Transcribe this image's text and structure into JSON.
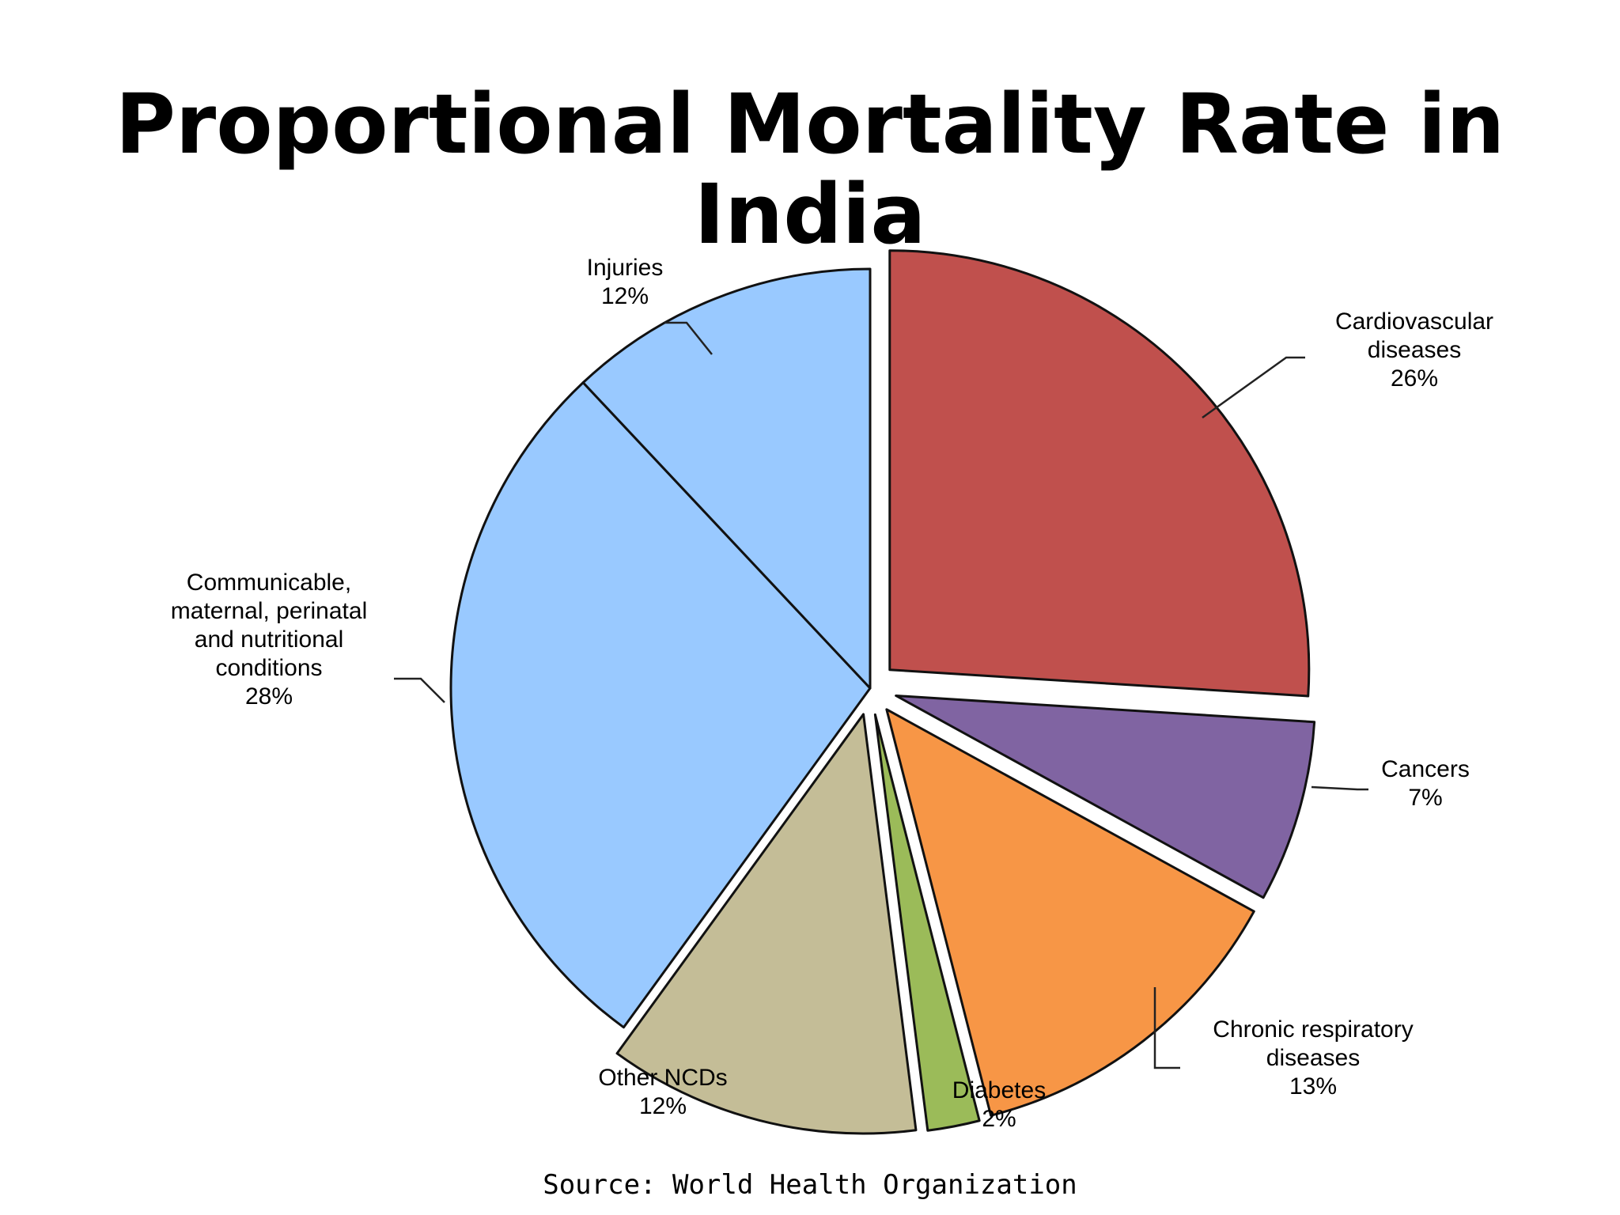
{
  "chart_data": {
    "type": "pie",
    "title": "Proportional Mortality Rate in India",
    "source": "Source: World Health Organization",
    "unit": "%",
    "slices": [
      {
        "label_lines": [
          "Cardiovascular",
          "diseases"
        ],
        "value": 26,
        "value_label": "26%",
        "color": "#c0504d",
        "exploded": true
      },
      {
        "label_lines": [
          "Cancers"
        ],
        "value": 7,
        "value_label": "7%",
        "color": "#8064a2",
        "exploded": true
      },
      {
        "label_lines": [
          "Chronic respiratory",
          "diseases"
        ],
        "value": 13,
        "value_label": "13%",
        "color": "#f79646",
        "exploded": true
      },
      {
        "label_lines": [
          "Diabetes"
        ],
        "value": 2,
        "value_label": "2%",
        "color": "#9bbb59",
        "exploded": true
      },
      {
        "label_lines": [
          "Other NCDs"
        ],
        "value": 12,
        "value_label": "12%",
        "color": "#c4bd97",
        "exploded": true
      },
      {
        "label_lines": [
          "Communicable,",
          "maternal, perinatal",
          "and nutritional",
          "conditions"
        ],
        "value": 28,
        "value_label": "28%",
        "color": "#99c9ff",
        "exploded": false
      },
      {
        "label_lines": [
          "Injuries"
        ],
        "value": 12,
        "value_label": "12%",
        "color": "#99c9ff",
        "exploded": false
      }
    ]
  }
}
